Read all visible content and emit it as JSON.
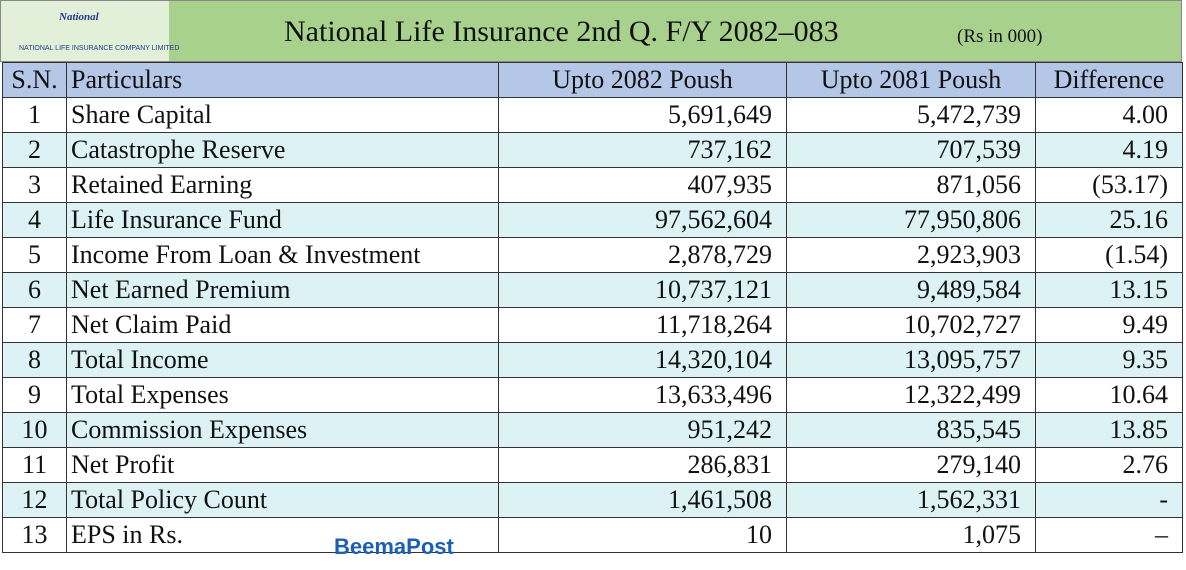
{
  "header": {
    "logo_name": "National",
    "logo_text": "NATIONAL LIFE INSURANCE COMPANY LIMITED",
    "title": "National Life Insurance 2nd Q. F/Y 2082–083",
    "unit": "(Rs in 000)"
  },
  "table": {
    "columns": [
      "S.N.",
      "Particulars",
      "Upto 2082 Poush",
      "Upto 2081 Poush",
      "Difference"
    ],
    "rows": [
      [
        "1",
        "Share Capital",
        "5,691,649",
        "5,472,739",
        "4.00"
      ],
      [
        "2",
        "Catastrophe Reserve",
        "737,162",
        "707,539",
        "4.19"
      ],
      [
        "3",
        "Retained Earning",
        "407,935",
        "871,056",
        "(53.17)"
      ],
      [
        "4",
        "Life Insurance Fund",
        "97,562,604",
        "77,950,806",
        "25.16"
      ],
      [
        "5",
        "Income From Loan & Investment",
        "2,878,729",
        "2,923,903",
        "(1.54)"
      ],
      [
        "6",
        "Net Earned Premium",
        "10,737,121",
        "9,489,584",
        "13.15"
      ],
      [
        "7",
        "Net Claim Paid",
        "11,718,264",
        "10,702,727",
        "9.49"
      ],
      [
        "8",
        "Total Income",
        "14,320,104",
        "13,095,757",
        "9.35"
      ],
      [
        "9",
        "Total Expenses",
        "13,633,496",
        "12,322,499",
        "10.64"
      ],
      [
        "10",
        "Commission Expenses",
        "951,242",
        "835,545",
        "13.85"
      ],
      [
        "11",
        "Net Profit",
        "286,831",
        "279,140",
        "2.76"
      ],
      [
        "12",
        "Total Policy Count",
        "1,461,508",
        "1,562,331",
        "-"
      ],
      [
        "13",
        "EPS in Rs.",
        "10",
        "1,075",
        "–"
      ]
    ]
  },
  "watermark": "BeemaPost"
}
